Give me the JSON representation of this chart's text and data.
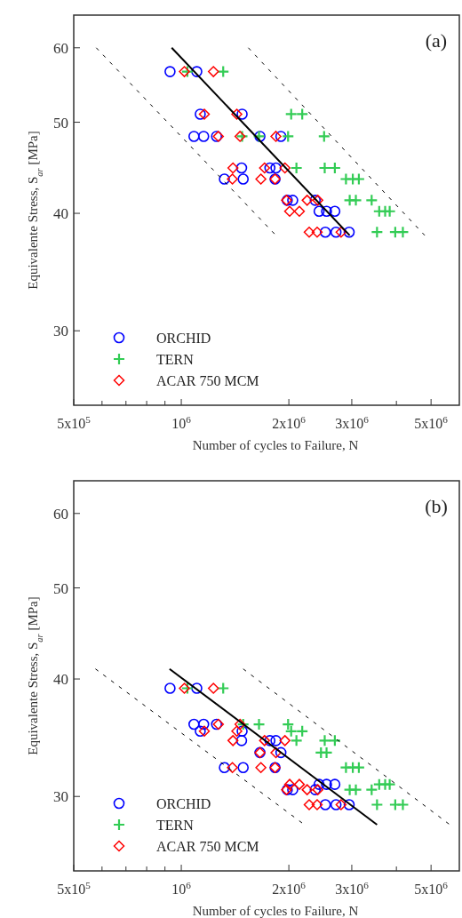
{
  "chart_data": [
    {
      "type": "scatter",
      "xlabel": "Number of cycles to Failure, N",
      "ylabel": "Equivalente Stress, S$_{ar}$ [MPa]",
      "annotations": [
        "(a)"
      ],
      "log": "xy",
      "legend": "bottom left",
      "xlim": [
        500000,
        6000000
      ],
      "ylim": [
        25,
        65
      ],
      "xticks": [
        {
          "value": 500000,
          "label": "5x10$^{5}$"
        },
        {
          "value": 600000,
          "label": null
        },
        {
          "value": 700000,
          "label": null
        },
        {
          "value": 800000,
          "label": null
        },
        {
          "value": 900000,
          "label": null
        },
        {
          "value": 1000000,
          "label": "10$^{6}$"
        },
        {
          "value": 2000000,
          "label": "2x10$^{6}$"
        },
        {
          "value": 3000000,
          "label": "3x10$^{6}$"
        },
        {
          "value": 4000000,
          "label": null
        },
        {
          "value": 5000000,
          "label": "5x10$^{6}$"
        }
      ],
      "yticks": [
        30,
        40,
        50,
        60
      ],
      "series": [
        {
          "name": "ORCHID",
          "type": "scatter",
          "marker": "circle",
          "color": "#0000ff",
          "x": [
            930000,
            1105000,
            1130000,
            1480000,
            1085000,
            1155000,
            1255000,
            1660000,
            1900000,
            1475000,
            1770000,
            1840000,
            1320000,
            1490000,
            1830000,
            1980000,
            2050000,
            2370000,
            2430000,
            2550000,
            2690000,
            2530000,
            2710000,
            2950000
          ],
          "values": [
            56.6,
            56.6,
            51,
            51,
            48.3,
            48.3,
            48.3,
            48.3,
            48.3,
            44.7,
            44.7,
            44.7,
            43.5,
            43.5,
            43.5,
            41.3,
            41.3,
            41.3,
            40.2,
            40.2,
            40.2,
            38.2,
            38.2,
            38.2
          ]
        },
        {
          "name": "TERN",
          "type": "scatter",
          "marker": "cross",
          "color": "#33cc55",
          "x": [
            1040000,
            1310000,
            2030000,
            2180000,
            1480000,
            1650000,
            1990000,
            2510000,
            2100000,
            2520000,
            2690000,
            2890000,
            3020000,
            3140000,
            2960000,
            3080000,
            3410000,
            3580000,
            3720000,
            3830000,
            3530000,
            3970000,
            4170000
          ],
          "values": [
            56.6,
            56.6,
            51,
            51,
            48.3,
            48.3,
            48.3,
            48.3,
            44.7,
            44.7,
            44.7,
            43.5,
            43.5,
            43.5,
            41.3,
            41.3,
            41.3,
            40.2,
            40.2,
            40.2,
            38.2,
            38.2,
            38.2
          ]
        },
        {
          "name": "ACAR 750 MCM",
          "type": "scatter",
          "marker": "diamond",
          "color": "#ff0000",
          "x": [
            1020000,
            1230000,
            1160000,
            1430000,
            1270000,
            1460000,
            1840000,
            1395000,
            1710000,
            1950000,
            1390000,
            1670000,
            1830000,
            1970000,
            2250000,
            2410000,
            2010000,
            2140000,
            2280000,
            2400000,
            2800000
          ],
          "values": [
            56.6,
            56.6,
            51,
            51,
            48.3,
            48.3,
            48.3,
            44.7,
            44.7,
            44.7,
            43.5,
            43.5,
            43.5,
            41.3,
            41.3,
            41.3,
            40.2,
            40.2,
            38.2,
            38.2,
            38.2
          ]
        },
        {
          "type": "line",
          "marker": "none",
          "line_style": "solid",
          "color": "#000000",
          "x": [
            940000,
            2960000
          ],
          "values": [
            60,
            37.9
          ]
        },
        {
          "type": "line",
          "marker": "none",
          "line_style": "dashed",
          "color": "#000000",
          "x": [
            578000,
            1840000
          ],
          "values": [
            60,
            37.9
          ]
        },
        {
          "type": "line",
          "marker": "none",
          "line_style": "dashed",
          "color": "#000000",
          "x": [
            1540000,
            4800000
          ],
          "values": [
            60,
            37.9
          ]
        }
      ]
    },
    {
      "type": "scatter",
      "xlabel": "Number of cycles to Failure, N",
      "ylabel": "Equivalente Stress, S$_{ar}$ [MPa]",
      "annotations": [
        "(b)"
      ],
      "log": "xy",
      "legend": "bottom left",
      "xlim": [
        500000,
        6000000
      ],
      "ylim": [
        25,
        65
      ],
      "xticks": [
        {
          "value": 500000,
          "label": "5x10$^{5}$"
        },
        {
          "value": 600000,
          "label": null
        },
        {
          "value": 700000,
          "label": null
        },
        {
          "value": 800000,
          "label": null
        },
        {
          "value": 900000,
          "label": null
        },
        {
          "value": 1000000,
          "label": "10$^{6}$"
        },
        {
          "value": 2000000,
          "label": "2x10$^{6}$"
        },
        {
          "value": 3000000,
          "label": "3x10$^{6}$"
        },
        {
          "value": 4000000,
          "label": null
        },
        {
          "value": 5000000,
          "label": "5x10$^{6}$"
        }
      ],
      "yticks": [
        30,
        40,
        50,
        60
      ],
      "series": [
        {
          "name": "ORCHID",
          "type": "scatter",
          "marker": "circle",
          "color": "#0000ff",
          "x": [
            930000,
            1105000,
            1085000,
            1155000,
            1255000,
            1130000,
            1480000,
            1475000,
            1770000,
            1840000,
            1660000,
            1900000,
            1320000,
            1490000,
            1830000,
            2430000,
            2550000,
            2690000,
            1980000,
            2050000,
            2370000,
            2530000,
            2710000,
            2950000
          ],
          "values": [
            39.1,
            39.1,
            35.8,
            35.8,
            35.8,
            35.2,
            35.2,
            34.4,
            34.4,
            34.4,
            33.4,
            33.4,
            32.2,
            32.2,
            32.2,
            30.9,
            30.9,
            30.9,
            30.5,
            30.5,
            30.5,
            29.4,
            29.4,
            29.4
          ]
        },
        {
          "name": "TERN",
          "type": "scatter",
          "marker": "cross",
          "color": "#33cc55",
          "x": [
            1040000,
            1310000,
            1490000,
            1650000,
            1990000,
            2030000,
            2180000,
            2100000,
            2520000,
            2690000,
            2460000,
            2550000,
            2890000,
            3020000,
            3140000,
            3580000,
            3720000,
            3830000,
            2960000,
            3080000,
            3410000,
            3530000,
            3970000,
            4170000
          ],
          "values": [
            39.1,
            39.1,
            35.8,
            35.8,
            35.8,
            35.2,
            35.2,
            34.4,
            34.4,
            34.4,
            33.4,
            33.4,
            32.2,
            32.2,
            32.2,
            30.9,
            30.9,
            30.9,
            30.5,
            30.5,
            30.5,
            29.4,
            29.4,
            29.4
          ]
        },
        {
          "name": "ACAR 750 MCM",
          "type": "scatter",
          "marker": "diamond",
          "color": "#ff0000",
          "x": [
            1020000,
            1230000,
            1270000,
            1460000,
            1160000,
            1430000,
            1395000,
            1710000,
            1950000,
            1660000,
            1840000,
            1390000,
            1670000,
            1830000,
            2010000,
            2140000,
            1970000,
            2250000,
            2410000,
            2280000,
            2400000,
            2800000
          ],
          "values": [
            39.1,
            39.1,
            35.8,
            35.8,
            35.2,
            35.2,
            34.4,
            34.4,
            34.4,
            33.4,
            33.4,
            32.2,
            32.2,
            32.2,
            30.9,
            30.9,
            30.5,
            30.5,
            30.5,
            29.4,
            29.4,
            29.4
          ]
        },
        {
          "type": "line",
          "marker": "none",
          "line_style": "solid",
          "color": "#000000",
          "x": [
            927000,
            3530000
          ],
          "values": [
            41,
            28
          ]
        },
        {
          "type": "line",
          "marker": "none",
          "line_style": "dashed",
          "color": "#000000",
          "x": [
            575000,
            2210000
          ],
          "values": [
            41,
            28
          ]
        },
        {
          "type": "line",
          "marker": "none",
          "line_style": "dashed",
          "color": "#000000",
          "x": [
            1490000,
            5640000
          ],
          "values": [
            41,
            28
          ]
        }
      ]
    }
  ]
}
